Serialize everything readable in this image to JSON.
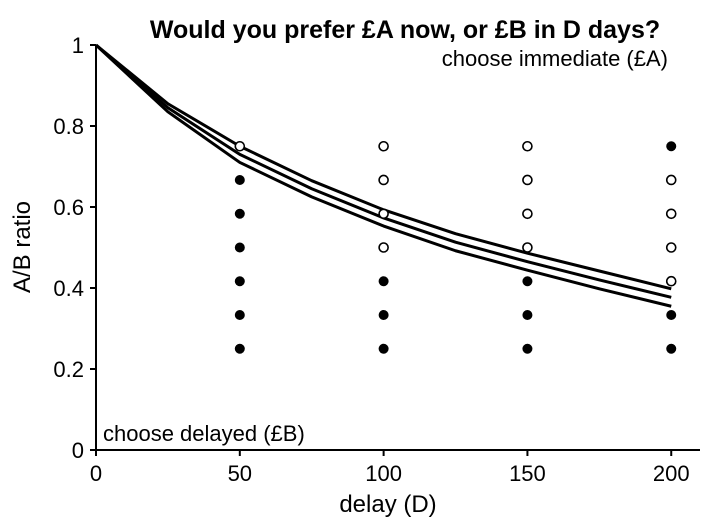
{
  "chart_data": {
    "type": "scatter",
    "title": "Would you prefer £A now, or £B in D days?",
    "xlabel": "delay (D)",
    "ylabel": "A/B ratio",
    "xlim": [
      0,
      210
    ],
    "ylim": [
      0,
      1
    ],
    "x_ticks": [
      0,
      50,
      100,
      150,
      200
    ],
    "y_ticks": [
      0,
      0.2,
      0.4,
      0.6,
      0.8,
      1
    ],
    "x_tick_labels": [
      "0",
      "50",
      "100",
      "150",
      "200"
    ],
    "y_tick_labels": [
      "0",
      "0.2",
      "0.4",
      "0.6",
      "0.8",
      "1"
    ],
    "annotations": {
      "top_right": "choose immediate (£A)",
      "bottom_left": "choose delayed (£B)"
    },
    "points": [
      {
        "x": 50,
        "y": 0.75,
        "choice": "immediate"
      },
      {
        "x": 50,
        "y": 0.6667,
        "choice": "delayed"
      },
      {
        "x": 50,
        "y": 0.5833,
        "choice": "delayed"
      },
      {
        "x": 50,
        "y": 0.5,
        "choice": "delayed"
      },
      {
        "x": 50,
        "y": 0.4167,
        "choice": "delayed"
      },
      {
        "x": 50,
        "y": 0.3333,
        "choice": "delayed"
      },
      {
        "x": 50,
        "y": 0.25,
        "choice": "delayed"
      },
      {
        "x": 100,
        "y": 0.75,
        "choice": "immediate"
      },
      {
        "x": 100,
        "y": 0.6667,
        "choice": "immediate"
      },
      {
        "x": 100,
        "y": 0.5833,
        "choice": "immediate"
      },
      {
        "x": 100,
        "y": 0.5,
        "choice": "immediate"
      },
      {
        "x": 100,
        "y": 0.4167,
        "choice": "delayed"
      },
      {
        "x": 100,
        "y": 0.3333,
        "choice": "delayed"
      },
      {
        "x": 100,
        "y": 0.25,
        "choice": "delayed"
      },
      {
        "x": 150,
        "y": 0.75,
        "choice": "immediate"
      },
      {
        "x": 150,
        "y": 0.6667,
        "choice": "immediate"
      },
      {
        "x": 150,
        "y": 0.5833,
        "choice": "immediate"
      },
      {
        "x": 150,
        "y": 0.5,
        "choice": "immediate"
      },
      {
        "x": 150,
        "y": 0.4167,
        "choice": "delayed"
      },
      {
        "x": 150,
        "y": 0.3333,
        "choice": "delayed"
      },
      {
        "x": 150,
        "y": 0.25,
        "choice": "delayed"
      },
      {
        "x": 200,
        "y": 0.75,
        "choice": "delayed"
      },
      {
        "x": 200,
        "y": 0.6667,
        "choice": "immediate"
      },
      {
        "x": 200,
        "y": 0.5833,
        "choice": "immediate"
      },
      {
        "x": 200,
        "y": 0.5,
        "choice": "immediate"
      },
      {
        "x": 200,
        "y": 0.4167,
        "choice": "immediate"
      },
      {
        "x": 200,
        "y": 0.3333,
        "choice": "delayed"
      },
      {
        "x": 200,
        "y": 0.25,
        "choice": "delayed"
      }
    ],
    "curves": [
      {
        "x": [
          0,
          25,
          50,
          75,
          100,
          125,
          150,
          175,
          200
        ],
        "y": [
          1,
          0.855,
          0.75,
          0.665,
          0.593,
          0.534,
          0.486,
          0.442,
          0.398
        ]
      },
      {
        "x": [
          0,
          25,
          50,
          75,
          100,
          125,
          150,
          175,
          200
        ],
        "y": [
          1,
          0.845,
          0.73,
          0.645,
          0.573,
          0.513,
          0.465,
          0.42,
          0.377
        ]
      },
      {
        "x": [
          0,
          25,
          50,
          75,
          100,
          125,
          150,
          175,
          200
        ],
        "y": [
          1,
          0.835,
          0.71,
          0.625,
          0.553,
          0.492,
          0.444,
          0.398,
          0.355
        ]
      }
    ],
    "grid": false,
    "colors": {
      "filled_marker": "#000000",
      "open_marker_fill": "#ffffff",
      "open_marker_stroke": "#000000",
      "curve": "#000000"
    }
  }
}
